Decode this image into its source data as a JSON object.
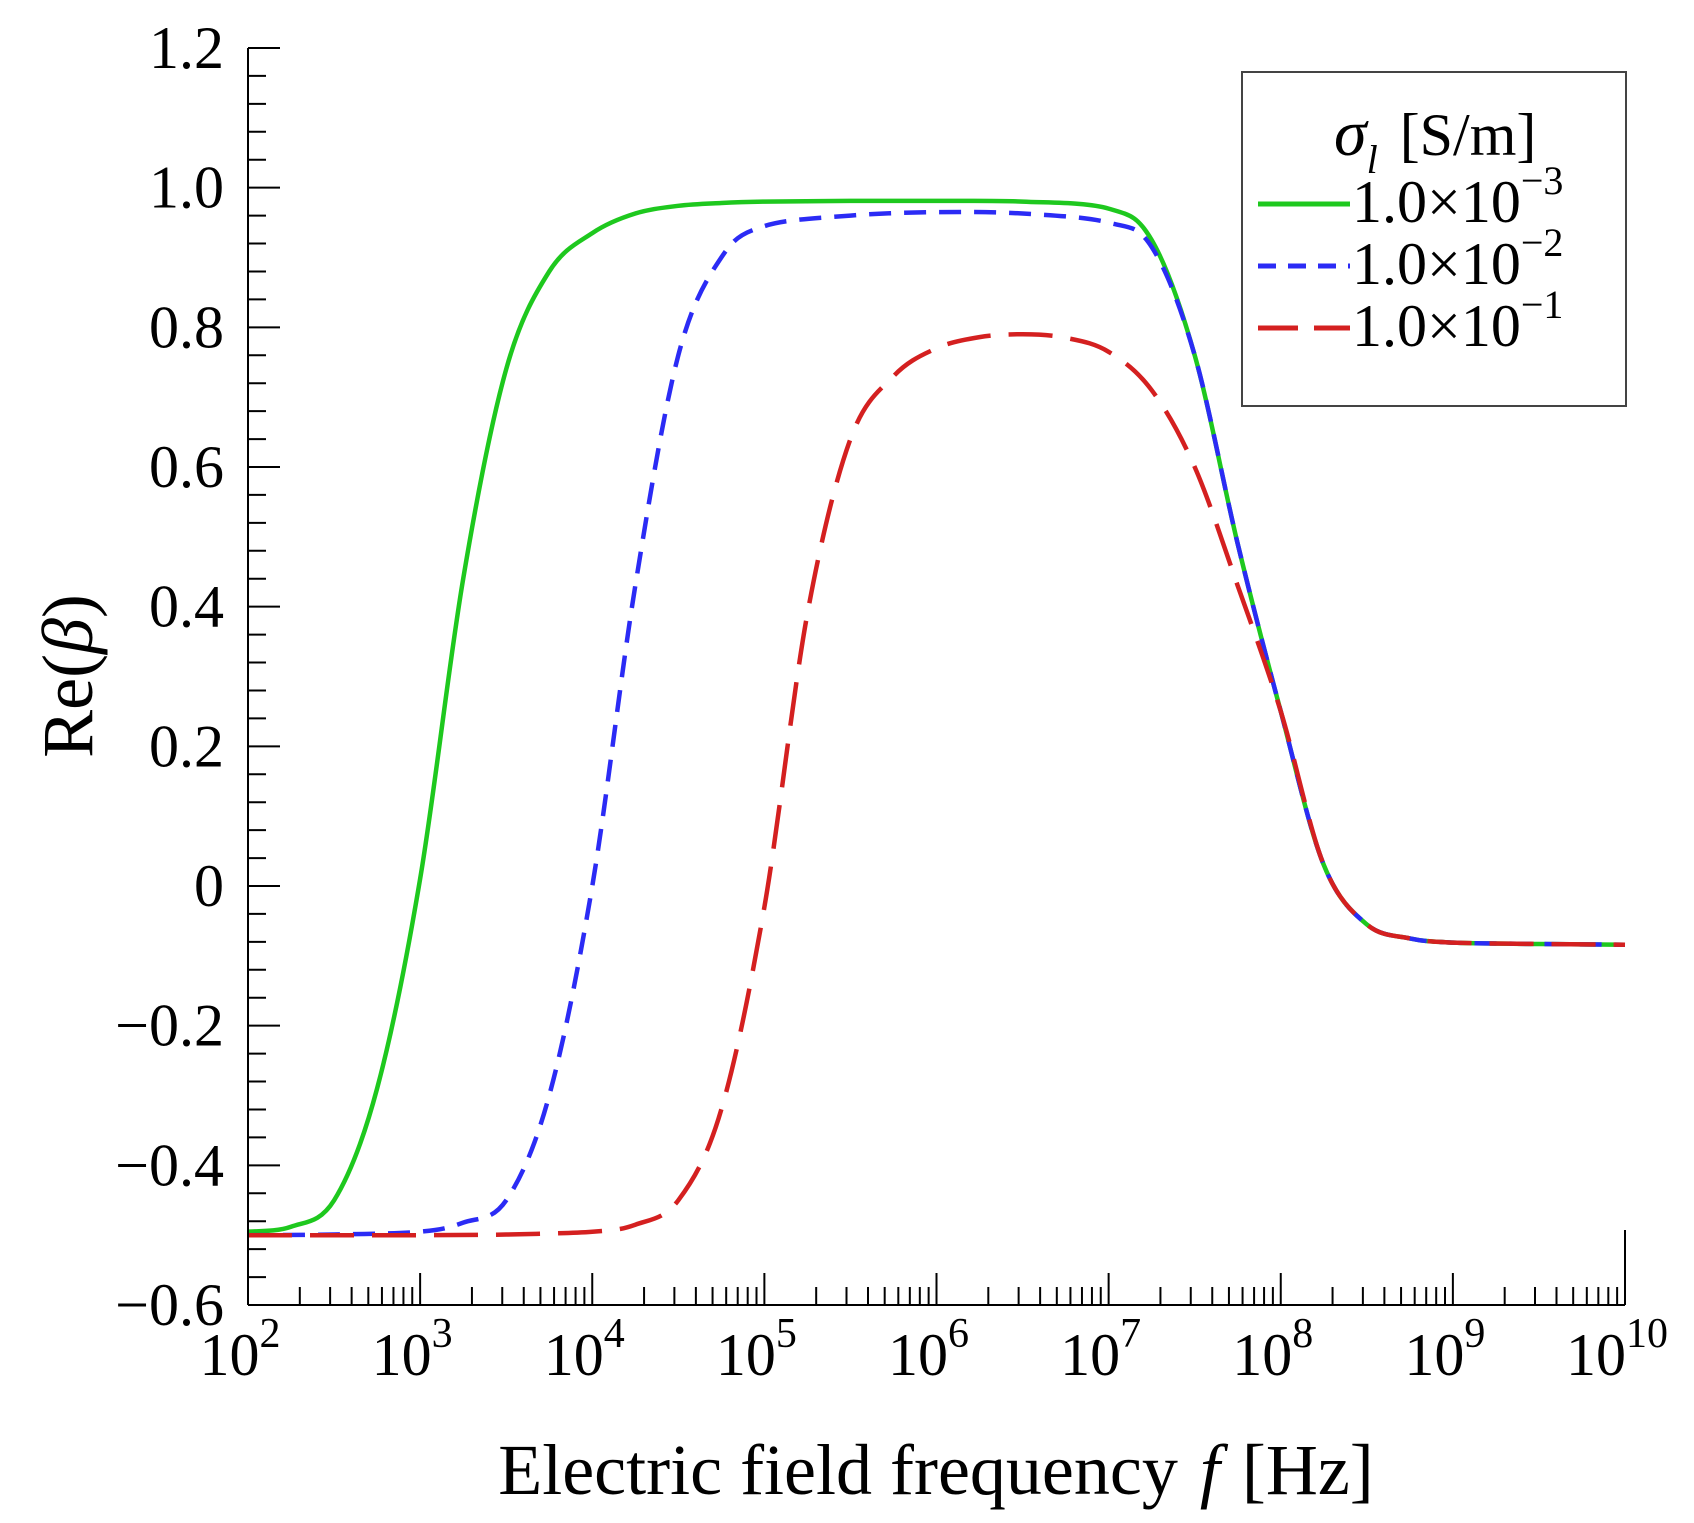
{
  "chart_data": {
    "type": "line",
    "x_scale": "log",
    "xlabel": {
      "text": "Electric field frequency",
      "var": "f",
      "unit": "[Hz]"
    },
    "ylabel": {
      "prefix": "Re(",
      "var": "β",
      "suffix": ")"
    },
    "xlim": [
      100,
      10000000000
    ],
    "ylim": [
      -0.6,
      1.2
    ],
    "x_ticks": [
      {
        "base": "10",
        "exp": "2"
      },
      {
        "base": "10",
        "exp": "3"
      },
      {
        "base": "10",
        "exp": "4"
      },
      {
        "base": "10",
        "exp": "5"
      },
      {
        "base": "10",
        "exp": "6"
      },
      {
        "base": "10",
        "exp": "7"
      },
      {
        "base": "10",
        "exp": "8"
      },
      {
        "base": "10",
        "exp": "9"
      },
      {
        "base": "10",
        "exp": "10"
      }
    ],
    "y_ticks": [
      {
        "value": 1.2,
        "label": "1.2"
      },
      {
        "value": 1.0,
        "label": "1.0"
      },
      {
        "value": 0.8,
        "label": "0.8"
      },
      {
        "value": 0.6,
        "label": "0.6"
      },
      {
        "value": 0.4,
        "label": "0.4"
      },
      {
        "value": 0.2,
        "label": "0.2"
      },
      {
        "value": 0.0,
        "label": "0"
      },
      {
        "value": -0.2,
        "label": "−0.2"
      },
      {
        "value": -0.4,
        "label": "−0.4"
      },
      {
        "value": -0.6,
        "label": "−0.6"
      }
    ],
    "grid": false,
    "legend": {
      "position": "top-right",
      "title": {
        "var": "σ",
        "sub": "l",
        "unit": "[S/m]"
      }
    },
    "series": [
      {
        "name": "1.0×10^−3",
        "mantissa": "1.0×10",
        "exp": "−3",
        "color": "#1ec81e",
        "dash": "solid",
        "log10_f": [
          2,
          2.25,
          2.5,
          2.75,
          3,
          3.25,
          3.5,
          3.75,
          4,
          4.25,
          4.5,
          4.75,
          5,
          5.5,
          6,
          6.5,
          7,
          7.25,
          7.5,
          7.75,
          8,
          8.25,
          8.5,
          8.75,
          9,
          9.5,
          10
        ],
        "values": [
          -0.495,
          -0.488,
          -0.45,
          -0.29,
          0.01,
          0.44,
          0.74,
          0.88,
          0.935,
          0.963,
          0.974,
          0.978,
          0.98,
          0.981,
          0.981,
          0.98,
          0.97,
          0.925,
          0.76,
          0.49,
          0.25,
          0.03,
          -0.055,
          -0.075,
          -0.081,
          -0.083,
          -0.084
        ]
      },
      {
        "name": "1.0×10^−2",
        "mantissa": "1.0×10",
        "exp": "−2",
        "color": "#2b2bf5",
        "dash": "short",
        "log10_f": [
          2,
          2.5,
          3,
          3.25,
          3.5,
          3.75,
          4,
          4.25,
          4.5,
          4.75,
          5,
          5.5,
          6,
          6.5,
          7,
          7.25,
          7.5,
          7.75,
          8,
          8.25,
          8.5,
          8.75,
          9,
          9.5,
          10
        ],
        "values": [
          -0.5,
          -0.499,
          -0.495,
          -0.482,
          -0.45,
          -0.3,
          0.0,
          0.43,
          0.76,
          0.9,
          0.945,
          0.96,
          0.965,
          0.963,
          0.95,
          0.915,
          0.76,
          0.49,
          0.25,
          0.03,
          -0.055,
          -0.075,
          -0.081,
          -0.083,
          -0.084
        ]
      },
      {
        "name": "1.0×10^−1",
        "mantissa": "1.0×10",
        "exp": "−1",
        "color": "#d42020",
        "dash": "long",
        "log10_f": [
          2,
          2.5,
          3,
          3.5,
          4,
          4.25,
          4.5,
          4.75,
          5,
          5.25,
          5.5,
          5.75,
          6,
          6.25,
          6.5,
          6.75,
          7,
          7.25,
          7.5,
          7.75,
          8,
          8.25,
          8.5,
          8.75,
          9,
          9.5,
          10
        ],
        "values": [
          -0.5,
          -0.5,
          -0.5,
          -0.499,
          -0.495,
          -0.485,
          -0.45,
          -0.32,
          -0.03,
          0.39,
          0.64,
          0.73,
          0.77,
          0.786,
          0.79,
          0.785,
          0.765,
          0.71,
          0.6,
          0.43,
          0.25,
          0.03,
          -0.055,
          -0.075,
          -0.081,
          -0.083,
          -0.084
        ]
      }
    ]
  }
}
